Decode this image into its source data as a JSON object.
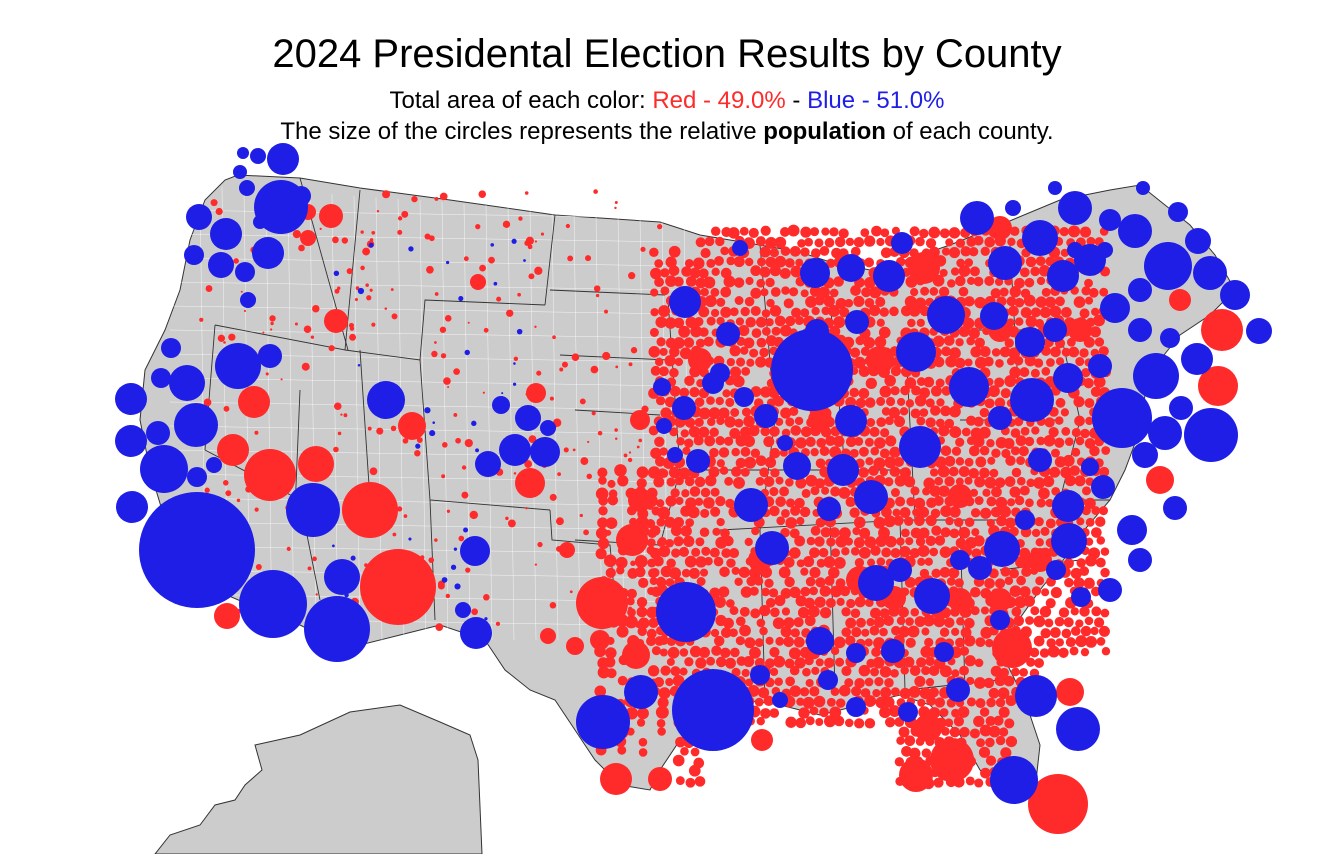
{
  "title": "2024 Presidental Election Results by County",
  "subtitle": {
    "prefix": "Total area of each color: ",
    "red_text": "Red - 49.0%",
    "separator": " - ",
    "blue_text": "Blue - 51.0%"
  },
  "description": {
    "before": "The size of the circles represents the relative ",
    "bold": "population",
    "after": " of each county."
  },
  "colors": {
    "red": "#ff2a2a",
    "blue": "#1e1ee6",
    "land": "#cccccc"
  }
}
